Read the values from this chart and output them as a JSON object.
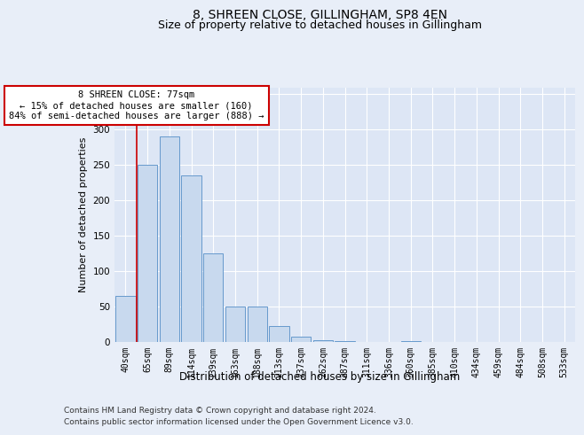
{
  "title": "8, SHREEN CLOSE, GILLINGHAM, SP8 4EN",
  "subtitle": "Size of property relative to detached houses in Gillingham",
  "xlabel": "Distribution of detached houses by size in Gillingham",
  "ylabel": "Number of detached properties",
  "categories": [
    "40sqm",
    "65sqm",
    "89sqm",
    "114sqm",
    "139sqm",
    "163sqm",
    "188sqm",
    "213sqm",
    "237sqm",
    "262sqm",
    "287sqm",
    "311sqm",
    "336sqm",
    "360sqm",
    "385sqm",
    "410sqm",
    "434sqm",
    "459sqm",
    "484sqm",
    "508sqm",
    "533sqm"
  ],
  "values": [
    65,
    250,
    290,
    235,
    125,
    50,
    50,
    22,
    8,
    3,
    1,
    0,
    0,
    1,
    0,
    0,
    0,
    0,
    0,
    0,
    0
  ],
  "bar_color": "#c8d9ee",
  "bar_edge_color": "#6699cc",
  "marker_line_color": "#cc0000",
  "annotation_line1": "8 SHREEN CLOSE: 77sqm",
  "annotation_line2": "← 15% of detached houses are smaller (160)",
  "annotation_line3": "84% of semi-detached houses are larger (888) →",
  "annotation_box_color": "#ffffff",
  "annotation_box_edge_color": "#cc0000",
  "ylim": [
    0,
    360
  ],
  "yticks": [
    0,
    50,
    100,
    150,
    200,
    250,
    300,
    350
  ],
  "footer_line1": "Contains HM Land Registry data © Crown copyright and database right 2024.",
  "footer_line2": "Contains public sector information licensed under the Open Government Licence v3.0.",
  "bg_color": "#e8eef8",
  "plot_bg_color": "#dde6f5",
  "title_fontsize": 10,
  "subtitle_fontsize": 9,
  "tick_fontsize": 7,
  "ylabel_fontsize": 8,
  "xlabel_fontsize": 8.5,
  "footer_fontsize": 6.5,
  "grid_color": "#ffffff"
}
